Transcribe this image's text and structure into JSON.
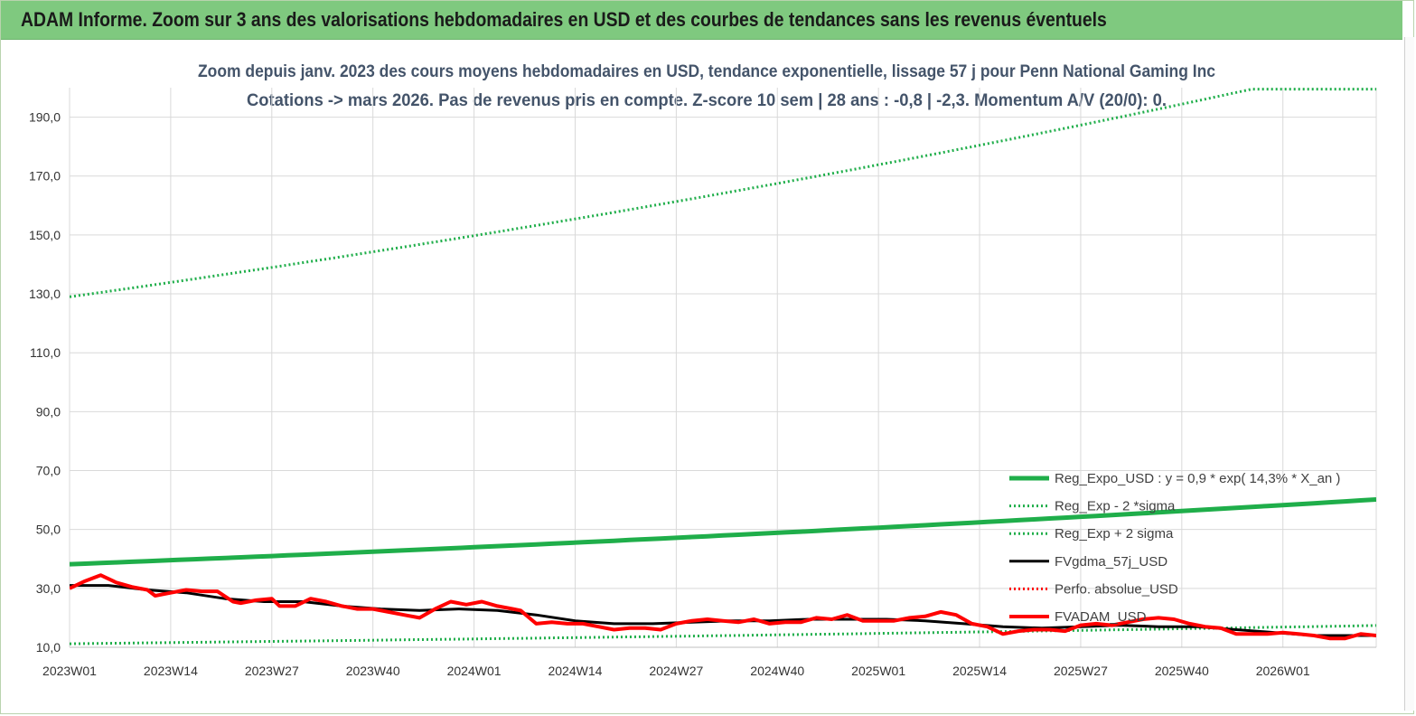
{
  "banner": {
    "title": "ADAM Informe. Zoom sur 3 ans des valorisations hebdomadaires en USD et des courbes de tendances sans les revenus éventuels"
  },
  "chart_data": {
    "type": "line",
    "title_line1": "Zoom depuis janv. 2023 des cours moyens hebdomadaires en USD, tendance exponentielle, lissage 57 j pour Penn National Gaming Inc",
    "title_line2": "Cotations -> mars 2026. Pas de revenus pris en  compte. Z-score 10 sem  | 28 ans : -0,8 | -2,3. Momentum A/V (20/0): 0.",
    "ylim": [
      10,
      200
    ],
    "yticks": [
      "10,0",
      "30,0",
      "50,0",
      "70,0",
      "90,0",
      "110,0",
      "130,0",
      "150,0",
      "170,0",
      "190,0"
    ],
    "ytick_values": [
      10,
      30,
      50,
      70,
      90,
      110,
      130,
      150,
      170,
      190
    ],
    "xlim": [
      0,
      168
    ],
    "xticks": [
      "2023W01",
      "2023W14",
      "2023W27",
      "2023W40",
      "2024W01",
      "2024W14",
      "2024W27",
      "2024W40",
      "2025W01",
      "2025W14",
      "2025W27",
      "2025W40",
      "2026W01"
    ],
    "xtick_values": [
      0,
      13,
      26,
      39,
      52,
      65,
      78,
      91,
      104,
      117,
      130,
      143,
      156
    ],
    "grid": true,
    "legend_position": "bottom-right",
    "series": [
      {
        "name": "Reg_Expo_USD : y = 0,9 * exp( 14,3% *  X_an )",
        "color": "#1fae4a",
        "style": "solid-thick",
        "x": [
          0,
          168
        ],
        "y": [
          38.2,
          60.2
        ],
        "curve": "exponential"
      },
      {
        "name": "Reg_Exp - 2 *sigma",
        "color": "#1fae4a",
        "style": "dotted",
        "x": [
          0,
          168
        ],
        "y": [
          11.2,
          17.4
        ],
        "curve": "exponential"
      },
      {
        "name": "Reg_Exp + 2 sigma",
        "color": "#1fae4a",
        "style": "dotted",
        "x": [
          0,
          152,
          168
        ],
        "y": [
          129.0,
          199.5,
          199.5
        ],
        "curve": "exponential-capped"
      },
      {
        "name": "FVgdma_57j_USD",
        "color": "#000000",
        "style": "solid",
        "x": [
          0,
          5,
          10,
          15,
          20,
          25,
          30,
          35,
          40,
          45,
          50,
          55,
          60,
          65,
          70,
          75,
          80,
          85,
          90,
          95,
          100,
          105,
          110,
          115,
          120,
          125,
          130,
          135,
          140,
          145,
          150,
          155,
          160,
          165,
          168
        ],
        "y": [
          31,
          31,
          29.5,
          28.5,
          26.5,
          25.5,
          25.5,
          24,
          23,
          22.5,
          23,
          22.5,
          21,
          19,
          18,
          18,
          18.5,
          19,
          19,
          19.5,
          19.5,
          19.5,
          19,
          18,
          17,
          16.5,
          17,
          17.5,
          17,
          17,
          16,
          15,
          14,
          14,
          14
        ]
      },
      {
        "name": "Perfo. absolue_USD",
        "color": "#ff0000",
        "style": "dotted",
        "x": [],
        "y": []
      },
      {
        "name": "FVADAM_USD",
        "color": "#ff0000",
        "style": "solid-thick",
        "x": [
          0,
          2,
          4,
          6,
          8,
          10,
          11,
          13,
          15,
          17,
          19,
          21,
          22,
          24,
          26,
          27,
          29,
          31,
          33,
          35,
          37,
          39,
          41,
          43,
          45,
          47,
          49,
          51,
          53,
          55,
          57,
          58,
          60,
          62,
          64,
          66,
          68,
          70,
          72,
          74,
          76,
          78,
          80,
          82,
          84,
          86,
          88,
          90,
          92,
          94,
          96,
          98,
          100,
          102,
          104,
          106,
          108,
          110,
          112,
          114,
          116,
          118,
          120,
          122,
          124,
          126,
          128,
          130,
          132,
          134,
          136,
          138,
          140,
          142,
          144,
          146,
          148,
          150,
          152,
          154,
          156,
          158,
          160,
          162,
          164,
          166,
          168
        ],
        "y": [
          30,
          32.5,
          34.5,
          32,
          30.5,
          29.5,
          27.5,
          28.5,
          29.5,
          29,
          29,
          25.5,
          25,
          26,
          26.5,
          24,
          24,
          26.5,
          25.5,
          24,
          23,
          23,
          22,
          21,
          20,
          23,
          25.5,
          24.5,
          25.5,
          24,
          23,
          22.5,
          18,
          18.5,
          18,
          18,
          17,
          16,
          16.5,
          16.5,
          16,
          18,
          19,
          19.5,
          19,
          18.5,
          19.5,
          18,
          18.5,
          18.5,
          20,
          19.5,
          21,
          19,
          19,
          19,
          20,
          20.5,
          22,
          21,
          18,
          17,
          14.5,
          15.5,
          16,
          16,
          15.5,
          17.5,
          18,
          17.5,
          18.5,
          19.5,
          20,
          19.5,
          18,
          17,
          16.5,
          14.5,
          14.5,
          14.5,
          15,
          14.5,
          14,
          13,
          13,
          14.5,
          14
        ]
      }
    ]
  }
}
